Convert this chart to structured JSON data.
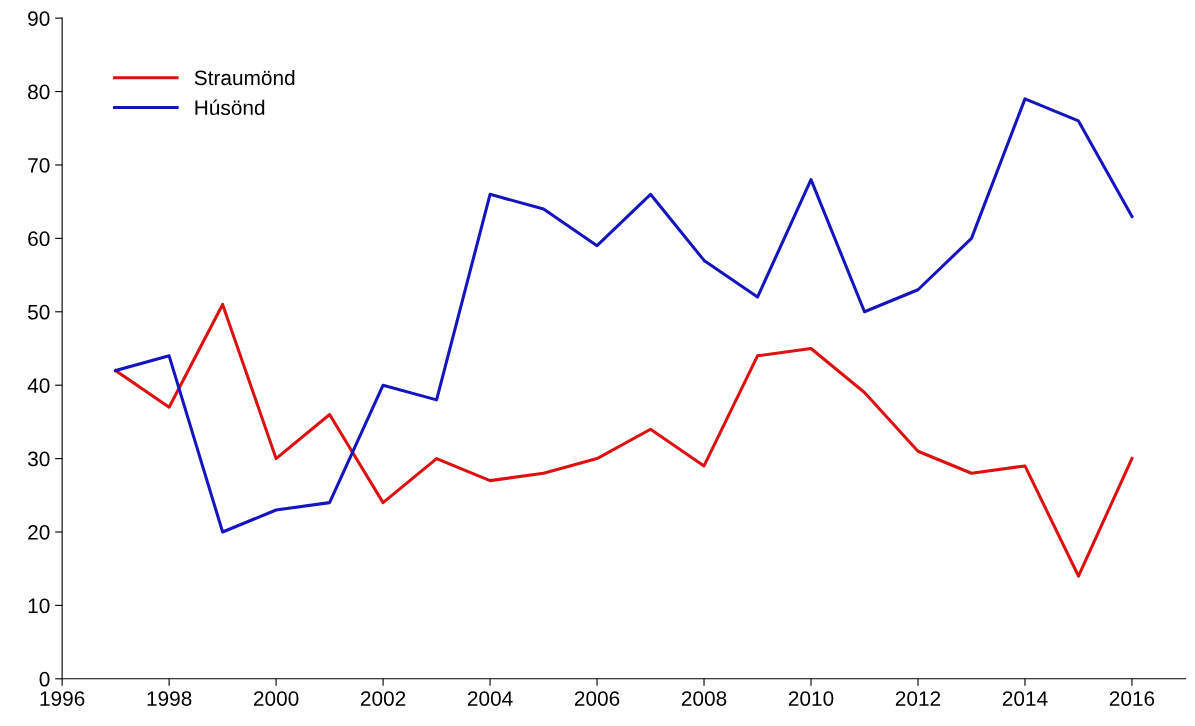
{
  "chart_data": {
    "type": "line",
    "x": [
      1997,
      1998,
      1999,
      2000,
      2001,
      2002,
      2003,
      2004,
      2005,
      2006,
      2007,
      2008,
      2009,
      2010,
      2011,
      2012,
      2013,
      2014,
      2015,
      2016
    ],
    "series": [
      {
        "name": "Straumönd",
        "color": "#dd1111",
        "values": [
          42,
          37,
          51,
          30,
          36,
          24,
          30,
          27,
          28,
          30,
          34,
          29,
          44,
          45,
          39,
          31,
          28,
          29,
          14,
          30
        ]
      },
      {
        "name": "Húsönd",
        "color": "#1515c0",
        "values": [
          42,
          44,
          20,
          23,
          24,
          40,
          38,
          66,
          64,
          59,
          66,
          57,
          52,
          68,
          50,
          53,
          60,
          79,
          76,
          63
        ]
      }
    ],
    "xlim": [
      1996,
      2017
    ],
    "xticks": [
      1996,
      1998,
      2000,
      2002,
      2004,
      2006,
      2008,
      2010,
      2012,
      2014,
      2016
    ],
    "ylim": [
      0,
      90
    ],
    "yticks": [
      0,
      10,
      20,
      30,
      40,
      50,
      60,
      70,
      80,
      90
    ],
    "grid": false,
    "legend": "top left",
    "marker": "none",
    "line_style": "solid"
  }
}
